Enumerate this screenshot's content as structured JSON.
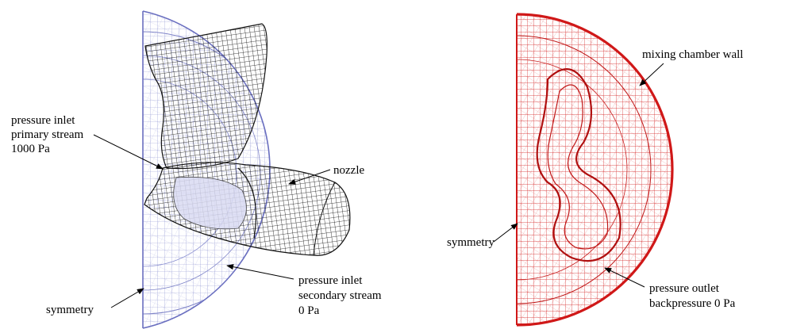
{
  "left_figure": {
    "labels": {
      "pressure_inlet_primary": [
        "pressure inlet",
        "primary stream",
        "1000 Pa"
      ],
      "nozzle": "nozzle",
      "pressure_inlet_secondary": [
        "pressure inlet",
        "secondary stream",
        "0 Pa"
      ],
      "symmetry": "symmetry"
    },
    "colors": {
      "domain_mesh": "#8a8fd0",
      "nozzle_mesh": "#111111"
    }
  },
  "right_figure": {
    "labels": {
      "mixing_chamber_wall": "mixing chamber wall",
      "symmetry": "symmetry",
      "pressure_outlet": [
        "pressure outlet",
        "backpressure 0 Pa"
      ]
    },
    "colors": {
      "mesh": "#d42020"
    }
  }
}
